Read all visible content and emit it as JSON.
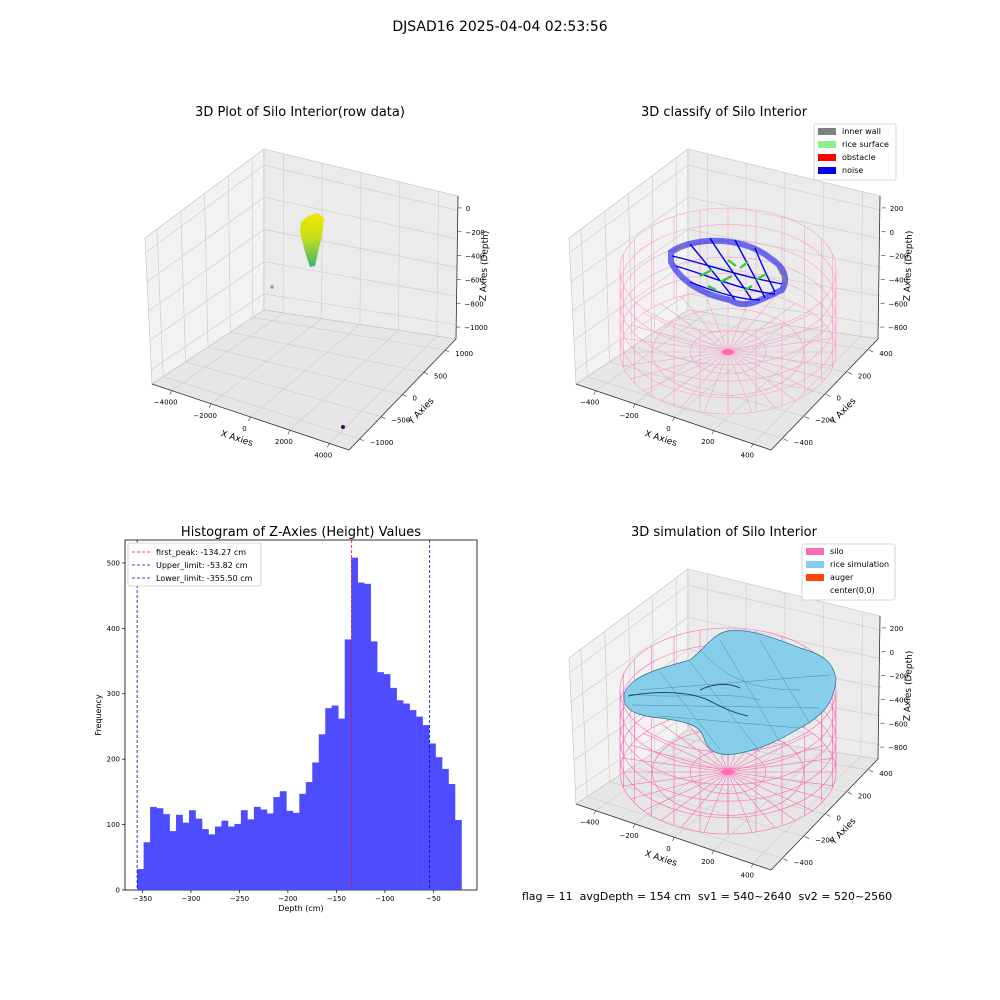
{
  "figure": {
    "suptitle": "DJSAD16 2025-04-04 02:53:56",
    "footer": "flag = 11  avgDepth = 154 cm  sv1 = 540~2640  sv2 = 520~2560"
  },
  "colors": {
    "hist_bar": "#4d4dff",
    "first_peak_line": "#ff0000",
    "limit_line": "#0000cc",
    "inner_wall": "#808080",
    "rice_surface": "#90ee90",
    "obstacle": "#ff0000",
    "noise": "#0000ee",
    "silo": "#ff69b4",
    "rice_simulation": "#87ceeb",
    "auger": "#ff4500",
    "raw_top": "#f2e600",
    "raw_bottom": "#3cb371"
  },
  "chart_data": [
    {
      "type": "scatter3d",
      "title": "3D Plot of Silo Interior(row data)",
      "xlabel": "X Axies",
      "ylabel": "Y Axies",
      "zlabel": "Z Axies (Depth)",
      "xticks": [
        "−4000",
        "−2000",
        "0",
        "2000",
        "4000"
      ],
      "yticks": [
        "−1000",
        "−500",
        "0",
        "500",
        "1000"
      ],
      "zticks": [
        "0",
        "−200",
        "−400",
        "−600",
        "−800",
        "−1000"
      ],
      "xlim": [
        -4500,
        4500
      ],
      "ylim": [
        -1000,
        1000
      ],
      "zlim": [
        -1000,
        0
      ]
    },
    {
      "type": "scatter3d",
      "title": "3D classify of Silo Interior",
      "xlabel": "X Axies",
      "ylabel": "Y Axies",
      "zlabel": "Z Axies (Depth)",
      "xticks": [
        "−400",
        "−200",
        "0",
        "200",
        "400"
      ],
      "yticks": [
        "−400",
        "−200",
        "0",
        "200",
        "400"
      ],
      "zticks": [
        "200",
        "0",
        "−200",
        "−400",
        "−600",
        "−800"
      ],
      "legend": [
        "inner wall",
        "rice surface",
        "obstacle",
        "noise"
      ],
      "legend_position": "top-right"
    },
    {
      "type": "bar",
      "title": "Histogram of Z-Axies (Height) Values",
      "xlabel": "Depth (cm)",
      "ylabel": "Frequency",
      "xlim": [
        -368,
        -5
      ],
      "ylim": [
        0,
        535
      ],
      "xticks": [
        -350,
        -300,
        -250,
        -200,
        -150,
        -100,
        -50
      ],
      "xtick_labels": [
        "−350",
        "−300",
        "−250",
        "−200",
        "−150",
        "−100",
        "−50"
      ],
      "yticks": [
        0,
        100,
        200,
        300,
        400,
        500
      ],
      "ytick_labels": [
        "0",
        "100",
        "200",
        "300",
        "400",
        "500"
      ],
      "bin_start": -355.5,
      "bin_width": 6.69,
      "values": [
        32,
        73,
        127,
        125,
        116,
        90,
        115,
        103,
        122,
        109,
        93,
        85,
        97,
        106,
        97,
        101,
        122,
        108,
        127,
        123,
        117,
        142,
        151,
        121,
        118,
        147,
        165,
        195,
        238,
        278,
        282,
        262,
        383,
        508,
        470,
        468,
        380,
        333,
        330,
        309,
        290,
        285,
        275,
        265,
        252,
        224,
        203,
        185,
        162,
        107
      ],
      "vlines": [
        {
          "label": "first_peak: -134.27 cm",
          "x": -134.27,
          "color": "#ff0000"
        },
        {
          "label": "Upper_limit: -53.82 cm",
          "x": -53.82,
          "color": "#0000cc"
        },
        {
          "label": "Lower_limit: -355.50 cm",
          "x": -355.5,
          "color": "#0000cc"
        }
      ],
      "legend_position": "top-left"
    },
    {
      "type": "surface3d",
      "title": "3D simulation of Silo Interior",
      "xlabel": "X Axies",
      "ylabel": "Y Axies",
      "zlabel": "Z Axies (Depth)",
      "xticks": [
        "−400",
        "−200",
        "0",
        "200",
        "400"
      ],
      "yticks": [
        "−400",
        "−200",
        "0",
        "200",
        "400"
      ],
      "zticks": [
        "200",
        "0",
        "−200",
        "−400",
        "−600",
        "−800"
      ],
      "legend": [
        "silo",
        "rice simulation",
        "auger",
        "center(0,0)"
      ],
      "legend_position": "top-right"
    }
  ]
}
